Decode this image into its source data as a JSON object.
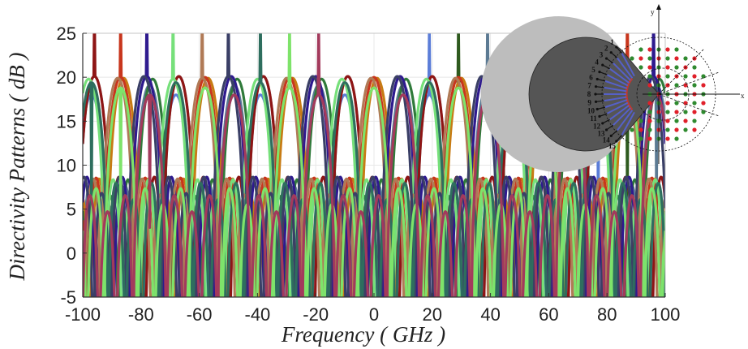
{
  "chart_data": {
    "type": "line",
    "title": "",
    "xlabel": "Frequency ( GHz )",
    "ylabel": "Directivity Patterns ( dB )",
    "xlim": [
      -100,
      100
    ],
    "ylim": [
      -5,
      25
    ],
    "xticks": [
      "-100",
      "-80",
      "-60",
      "-40",
      "-20",
      "0",
      "20",
      "40",
      "60",
      "80",
      "100"
    ],
    "yticks": [
      "-5",
      "0",
      "5",
      "10",
      "15",
      "20",
      "25"
    ],
    "grid": true,
    "series": [
      {
        "peak_x": -68,
        "peak_y": 18.0,
        "color": "#5b7dd8"
      },
      {
        "peak_x": -58,
        "peak_y": 18.8,
        "color": "#2e5a1e"
      },
      {
        "peak_x": -48,
        "peak_y": 19.1,
        "color": "#5c7a93"
      },
      {
        "peak_x": -38,
        "peak_y": 20.1,
        "color": "#8c8c8c"
      },
      {
        "peak_x": -28,
        "peak_y": 19.9,
        "color": "#c77b14"
      },
      {
        "peak_x": -18,
        "peak_y": 19.8,
        "color": "#2f7a3a"
      },
      {
        "peak_x": -9,
        "peak_y": 20.1,
        "color": "#8e1515"
      },
      {
        "peak_x": 0,
        "peak_y": 20.0,
        "color": "#c8361d"
      },
      {
        "peak_x": 9,
        "peak_y": 20.1,
        "color": "#2e1a8e"
      },
      {
        "peak_x": 18,
        "peak_y": 19.8,
        "color": "#76e07a"
      },
      {
        "peak_x": 28,
        "peak_y": 19.9,
        "color": "#b07a56"
      },
      {
        "peak_x": 37,
        "peak_y": 20.1,
        "color": "#3a3f66"
      },
      {
        "peak_x": 48,
        "peak_y": 19.4,
        "color": "#2e6e5e"
      },
      {
        "peak_x": 58,
        "peak_y": 18.8,
        "color": "#7ee36a"
      },
      {
        "peak_x": 68,
        "peak_y": 18.0,
        "color": "#a33a5c"
      }
    ]
  },
  "inset": {
    "axis_labels": {
      "y": "y",
      "x": "x"
    },
    "port_labels": [
      "1",
      "2",
      "3",
      "4",
      "5",
      "6",
      "7",
      "8",
      "9",
      "10",
      "11",
      "12",
      "13",
      "14",
      "15"
    ],
    "colors": {
      "outer_ring": "#bdbdbd",
      "inner_disk": "#555555",
      "red_dot": "#e0202a",
      "green_dot": "#2f8a2f",
      "arc": "#c0392b",
      "feed": "#5560c8"
    }
  }
}
